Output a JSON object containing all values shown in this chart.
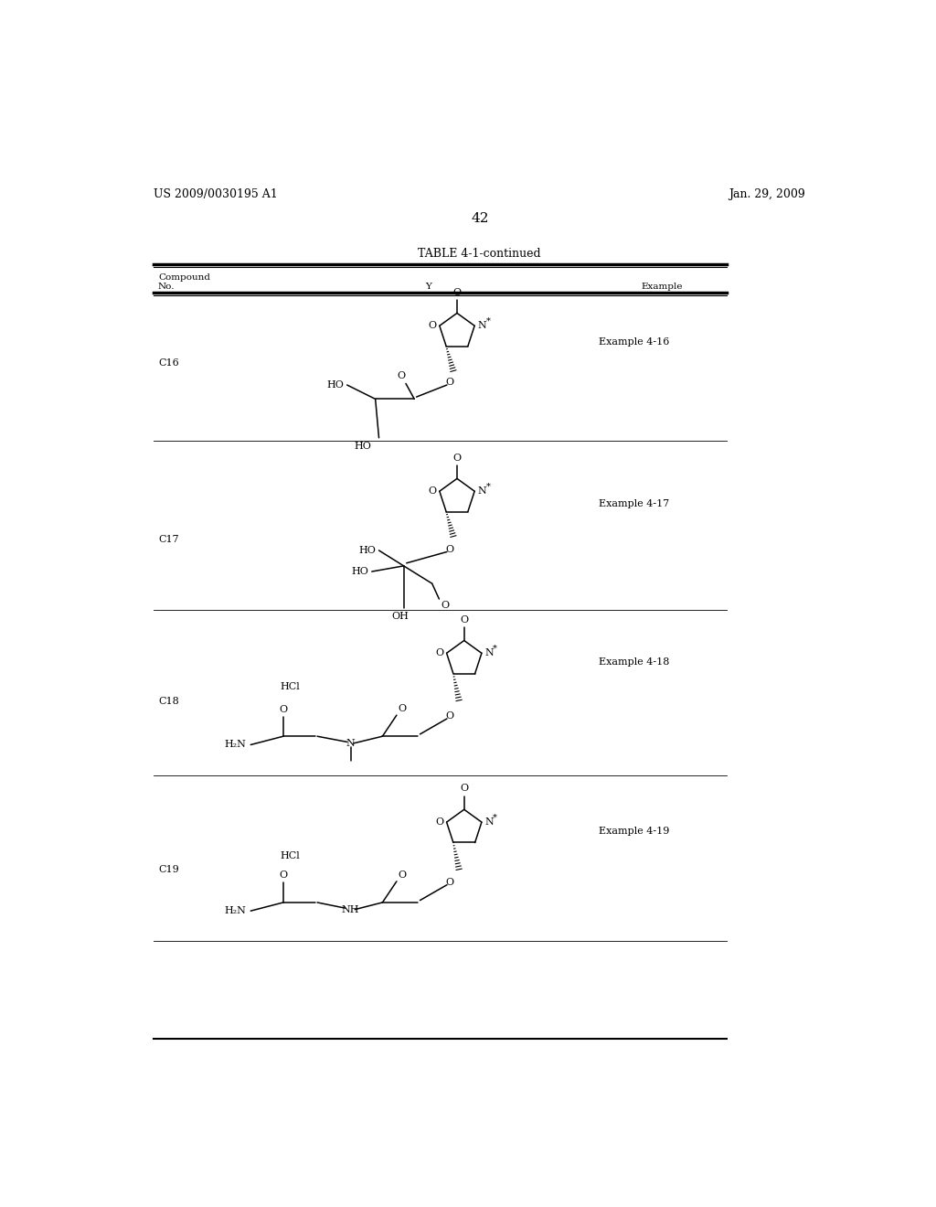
{
  "background_color": "#ffffff",
  "header_left": "US 2009/0030195 A1",
  "header_right": "Jan. 29, 2009",
  "page_number": "42",
  "table_title": "TABLE 4-1-continued"
}
